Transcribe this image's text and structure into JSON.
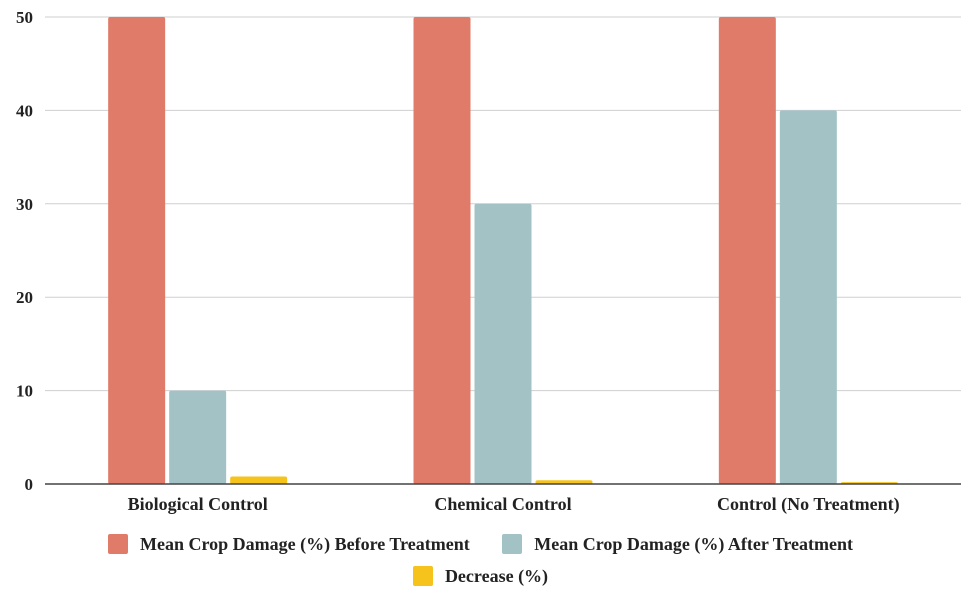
{
  "chart_data": {
    "type": "bar",
    "title": "",
    "xlabel": "",
    "ylabel": "",
    "ylim": [
      0,
      50
    ],
    "yticks": [
      0,
      10,
      20,
      30,
      40,
      50
    ],
    "grid": true,
    "legend_position": "bottom",
    "categories": [
      "Biological Control",
      "Chemical Control",
      "Control (No Treatment)"
    ],
    "series": [
      {
        "name": "Mean Crop Damage (%) Before Treatment",
        "color": "#e07b69",
        "values": [
          50,
          50,
          50
        ]
      },
      {
        "name": "Mean Crop Damage (%) After Treatment",
        "color": "#a3c2c6",
        "values": [
          10,
          30,
          40
        ]
      },
      {
        "name": "Decrease (%)",
        "color": "#f5c31c",
        "values": [
          0.8,
          0.4,
          0.2
        ]
      }
    ]
  }
}
